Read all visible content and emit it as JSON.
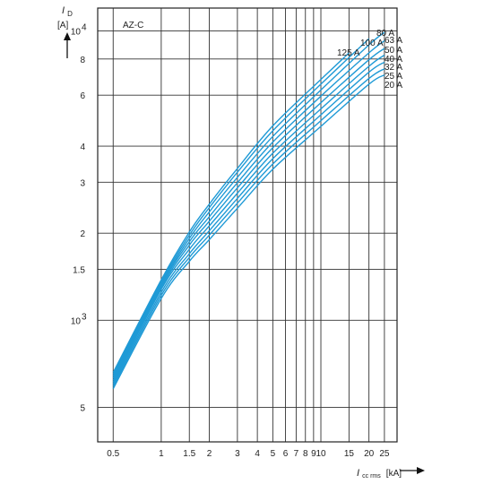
{
  "chart_data": {
    "type": "line",
    "title": "AZ-C",
    "ylabel": {
      "symbol": "I",
      "sub": "D",
      "unit": "[A]"
    },
    "xlabel": {
      "symbol": "I",
      "sub": "cc rms",
      "unit": "[kA]"
    },
    "xscale": "log",
    "yscale": "log",
    "xlim": [
      0.4,
      30
    ],
    "ylim": [
      380,
      12000
    ],
    "grid": true,
    "x_gridlines": [
      0.5,
      1,
      1.5,
      2,
      3,
      4,
      5,
      6,
      7,
      8,
      9,
      10,
      15,
      20,
      25
    ],
    "y_gridlines": [
      500,
      1000,
      1500,
      2000,
      3000,
      4000,
      6000,
      8000,
      10000
    ],
    "x_ticks": [
      {
        "v": 0.5,
        "t": "0.5"
      },
      {
        "v": 1,
        "t": "1"
      },
      {
        "v": 1.5,
        "t": "1.5"
      },
      {
        "v": 2,
        "t": "2"
      },
      {
        "v": 3,
        "t": "3"
      },
      {
        "v": 4,
        "t": "4"
      },
      {
        "v": 5,
        "t": "5"
      },
      {
        "v": 6,
        "t": "6"
      },
      {
        "v": 7,
        "t": "7"
      },
      {
        "v": 8,
        "t": "8"
      },
      {
        "v": 9,
        "t": "9"
      },
      {
        "v": 10,
        "t": "10"
      },
      {
        "v": 15,
        "t": "15"
      },
      {
        "v": 20,
        "t": "20"
      },
      {
        "v": 25,
        "t": "25"
      }
    ],
    "y_ticks": [
      {
        "v": 500,
        "t": "5"
      },
      {
        "v": 1500,
        "t": "1.5"
      },
      {
        "v": 2000,
        "t": "2"
      },
      {
        "v": 3000,
        "t": "3"
      },
      {
        "v": 4000,
        "t": "4"
      },
      {
        "v": 6000,
        "t": "6"
      },
      {
        "v": 8000,
        "t": "8"
      }
    ],
    "y_power_ticks": [
      {
        "v": 1000,
        "base": "10",
        "exp": "3"
      },
      {
        "v": 10000,
        "base": "10",
        "exp": "4"
      }
    ],
    "line_color": "#1f9ad6",
    "series": [
      {
        "name": "125 A",
        "x": [
          0.5,
          1,
          1.5,
          2,
          3,
          5,
          10,
          15
        ],
        "y": [
          660,
          1380,
          2020,
          2520,
          3350,
          4700,
          6800,
          8400
        ]
      },
      {
        "name": "100 A",
        "x": [
          0.5,
          1,
          1.5,
          2,
          3,
          5,
          10,
          20
        ],
        "y": [
          650,
          1360,
          1970,
          2450,
          3250,
          4520,
          6550,
          9400
        ]
      },
      {
        "name": "80 A",
        "x": [
          0.5,
          1,
          1.5,
          2,
          3,
          5,
          10,
          20,
          25
        ],
        "y": [
          640,
          1340,
          1920,
          2370,
          3120,
          4320,
          6250,
          8950,
          9900
        ]
      },
      {
        "name": "63 A",
        "x": [
          0.5,
          1,
          1.5,
          2,
          3,
          5,
          10,
          20,
          25
        ],
        "y": [
          630,
          1320,
          1870,
          2280,
          2990,
          4130,
          5950,
          8400,
          9250
        ]
      },
      {
        "name": "50 A",
        "x": [
          0.5,
          1,
          1.5,
          2,
          3,
          5,
          10,
          20,
          25
        ],
        "y": [
          620,
          1300,
          1820,
          2200,
          2870,
          3950,
          5650,
          7950,
          8700
        ]
      },
      {
        "name": "40 A",
        "x": [
          0.5,
          1,
          1.5,
          2,
          3,
          5,
          10,
          20,
          25
        ],
        "y": [
          610,
          1280,
          1760,
          2120,
          2750,
          3780,
          5380,
          7550,
          8250
        ]
      },
      {
        "name": "32 A",
        "x": [
          0.5,
          1,
          1.5,
          2,
          3,
          5,
          10,
          20,
          25
        ],
        "y": [
          600,
          1250,
          1700,
          2040,
          2640,
          3620,
          5130,
          7200,
          7800
        ]
      },
      {
        "name": "25 A",
        "x": [
          0.5,
          1,
          1.5,
          2,
          3,
          5,
          10,
          20,
          25
        ],
        "y": [
          590,
          1220,
          1650,
          1970,
          2540,
          3470,
          4900,
          6850,
          7400
        ]
      },
      {
        "name": "20 A",
        "x": [
          0.5,
          1,
          1.5,
          2,
          3,
          5,
          10,
          20,
          25
        ],
        "y": [
          580,
          1190,
          1600,
          1900,
          2440,
          3330,
          4680,
          6550,
          7050
        ]
      }
    ]
  }
}
